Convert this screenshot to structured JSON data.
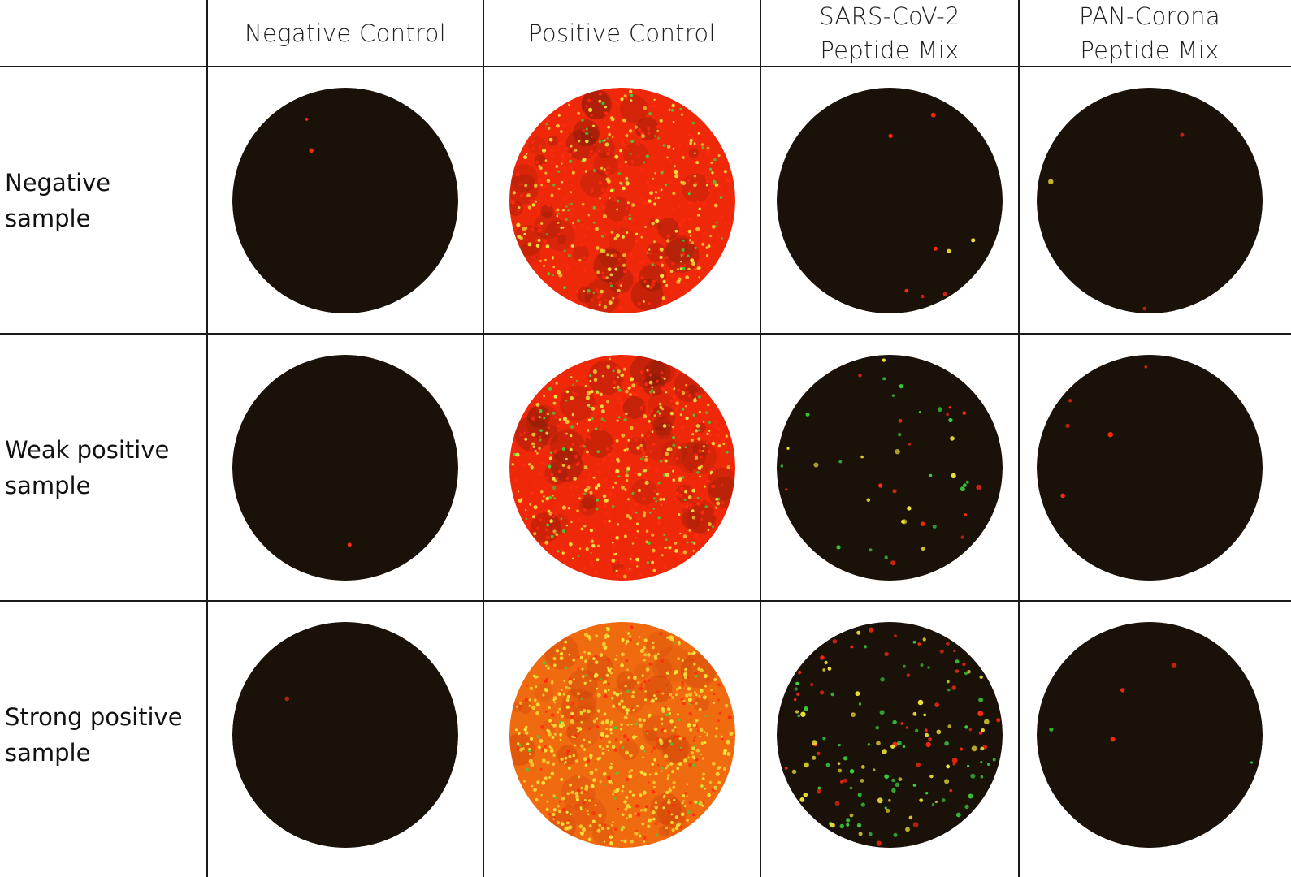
{
  "columns": [
    {
      "id": "negative-control",
      "lines": [
        "Negative Control"
      ]
    },
    {
      "id": "positive-control",
      "lines": [
        "Positive Control"
      ]
    },
    {
      "id": "sars-cov-2",
      "lines": [
        "SARS-CoV-2",
        "Peptide Mix"
      ]
    },
    {
      "id": "pan-corona",
      "lines": [
        "PAN-Corona",
        "Peptide Mix"
      ]
    }
  ],
  "rows": [
    {
      "id": "negative-sample",
      "lines": [
        "Negative",
        "sample"
      ]
    },
    {
      "id": "weak-positive-sample",
      "lines": [
        "Weak positive",
        "sample"
      ]
    },
    {
      "id": "strong-positive-sample",
      "lines": [
        "Strong positive",
        "sample"
      ]
    }
  ],
  "well_background": "#1a1208",
  "positive_background": "#f0280a",
  "spot_colors": {
    "red": "#ff2a10",
    "green": "#3cd23c",
    "yellow": "#f4e63a"
  },
  "wells": [
    [
      {
        "density": "none",
        "red": 2,
        "green": 0,
        "yellow": 0
      },
      {
        "density": "confluent",
        "red": 260,
        "green": 70,
        "yellow": 220,
        "fill": "red"
      },
      {
        "density": "sparse",
        "red": 6,
        "green": 0,
        "yellow": 2
      },
      {
        "density": "sparse",
        "red": 2,
        "green": 0,
        "yellow": 1
      }
    ],
    [
      {
        "density": "none",
        "red": 1,
        "green": 0,
        "yellow": 0
      },
      {
        "density": "confluent",
        "red": 260,
        "green": 90,
        "yellow": 260,
        "fill": "red"
      },
      {
        "density": "moderate",
        "red": 14,
        "green": 18,
        "yellow": 12
      },
      {
        "density": "sparse",
        "red": 5,
        "green": 0,
        "yellow": 0
      }
    ],
    [
      {
        "density": "none",
        "red": 1,
        "green": 0,
        "yellow": 0
      },
      {
        "density": "confluent",
        "red": 120,
        "green": 40,
        "yellow": 520,
        "fill": "orange"
      },
      {
        "density": "high",
        "red": 45,
        "green": 60,
        "yellow": 50
      },
      {
        "density": "sparse",
        "red": 3,
        "green": 2,
        "yellow": 0
      }
    ]
  ]
}
